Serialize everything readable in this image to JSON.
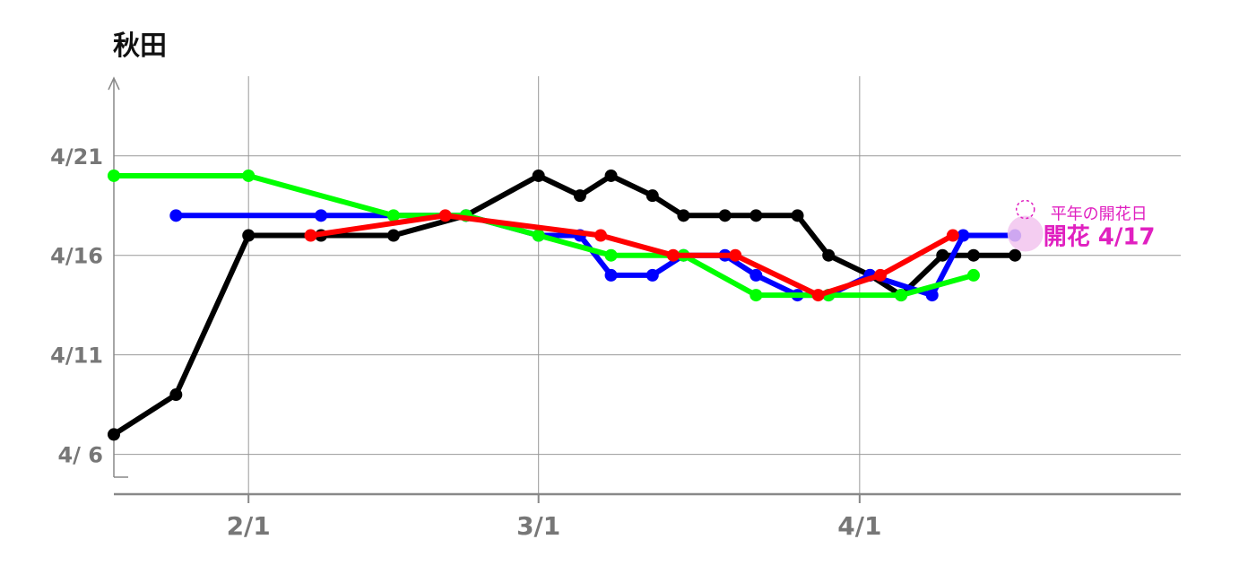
{
  "chart_data": {
    "type": "line",
    "title": "秋田",
    "xlabel": "",
    "ylabel": "",
    "x_ticks": [
      "2/1",
      "3/1",
      "4/1"
    ],
    "y_ticks": [
      "4/ 6",
      "4/11",
      "4/16",
      "4/21"
    ],
    "xlim": [
      "2025-01-19",
      "2025-05-02"
    ],
    "ylim": [
      "2025-04-04",
      "2025-04-25"
    ],
    "grid": true,
    "legend": "none",
    "series": [
      {
        "color": "#000000",
        "points": [
          [
            "2025-01-19",
            "2025-04-07"
          ],
          [
            "2025-01-25",
            "2025-04-09"
          ],
          [
            "2025-02-01",
            "2025-04-17"
          ],
          [
            "2025-02-08",
            "2025-04-17"
          ],
          [
            "2025-02-15",
            "2025-04-17"
          ],
          [
            "2025-02-22",
            "2025-04-18"
          ],
          [
            "2025-03-01",
            "2025-04-20"
          ],
          [
            "2025-03-05",
            "2025-04-19"
          ],
          [
            "2025-03-08",
            "2025-04-20"
          ],
          [
            "2025-03-12",
            "2025-04-19"
          ],
          [
            "2025-03-15",
            "2025-04-18"
          ],
          [
            "2025-03-19",
            "2025-04-18"
          ],
          [
            "2025-03-22",
            "2025-04-18"
          ],
          [
            "2025-03-26",
            "2025-04-18"
          ],
          [
            "2025-03-29",
            "2025-04-16"
          ],
          [
            "2025-04-02",
            "2025-04-15"
          ],
          [
            "2025-04-05",
            "2025-04-14"
          ],
          [
            "2025-04-09",
            "2025-04-16"
          ],
          [
            "2025-04-12",
            "2025-04-16"
          ],
          [
            "2025-04-16",
            "2025-04-16"
          ]
        ]
      },
      {
        "color": "#0000ff",
        "points": [
          [
            "2025-01-25",
            "2025-04-18"
          ],
          [
            "2025-02-08",
            "2025-04-18"
          ],
          [
            "2025-02-22",
            "2025-04-18"
          ],
          [
            "2025-03-01",
            "2025-04-17"
          ],
          [
            "2025-03-05",
            "2025-04-17"
          ],
          [
            "2025-03-08",
            "2025-04-15"
          ],
          [
            "2025-03-12",
            "2025-04-15"
          ],
          [
            "2025-03-15",
            "2025-04-16"
          ],
          [
            "2025-03-19",
            "2025-04-16"
          ],
          [
            "2025-03-22",
            "2025-04-15"
          ],
          [
            "2025-03-26",
            "2025-04-14"
          ],
          [
            "2025-03-29",
            "2025-04-14"
          ],
          [
            "2025-04-02",
            "2025-04-15"
          ],
          [
            "2025-04-08",
            "2025-04-14"
          ],
          [
            "2025-04-11",
            "2025-04-17"
          ],
          [
            "2025-04-16",
            "2025-04-17"
          ]
        ]
      },
      {
        "color": "#00ff00",
        "points": [
          [
            "2025-01-19",
            "2025-04-20"
          ],
          [
            "2025-02-01",
            "2025-04-20"
          ],
          [
            "2025-02-15",
            "2025-04-18"
          ],
          [
            "2025-02-22",
            "2025-04-18"
          ],
          [
            "2025-03-01",
            "2025-04-17"
          ],
          [
            "2025-03-08",
            "2025-04-16"
          ],
          [
            "2025-03-15",
            "2025-04-16"
          ],
          [
            "2025-03-22",
            "2025-04-14"
          ],
          [
            "2025-03-29",
            "2025-04-14"
          ],
          [
            "2025-04-05",
            "2025-04-14"
          ],
          [
            "2025-04-12",
            "2025-04-15"
          ]
        ]
      },
      {
        "color": "#ff0000",
        "points": [
          [
            "2025-02-07",
            "2025-04-17"
          ],
          [
            "2025-02-20",
            "2025-04-18"
          ],
          [
            "2025-03-07",
            "2025-04-17"
          ],
          [
            "2025-03-14",
            "2025-04-16"
          ],
          [
            "2025-03-20",
            "2025-04-16"
          ],
          [
            "2025-03-28",
            "2025-04-14"
          ],
          [
            "2025-04-03",
            "2025-04-15"
          ],
          [
            "2025-04-10",
            "2025-04-17"
          ]
        ]
      }
    ],
    "annotations": {
      "normal_label": "平年の開花日",
      "bloom_label": "開花 4/17",
      "bloom_point": [
        "2025-04-17",
        "2025-04-17"
      ],
      "color": "#e020c0"
    }
  }
}
